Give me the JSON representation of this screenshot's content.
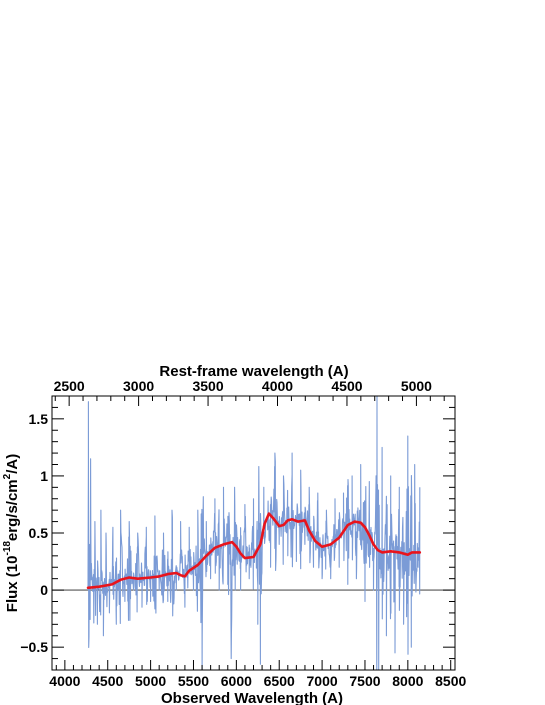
{
  "chart_data": {
    "type": "line",
    "xlabel": "Observed Wavelength (A)",
    "x2label": "Rest-frame wavelength (A)",
    "ylabel_parts": {
      "pre": "Flux (10",
      "sup1": "-18",
      "mid": "erg/s/cm",
      "sup2": "2",
      "post": "/A)"
    },
    "xlim": [
      3850,
      8550
    ],
    "ylim": [
      -0.7,
      1.7
    ],
    "x_ticks": [
      4000,
      4500,
      5000,
      5500,
      6000,
      6500,
      7000,
      7500,
      8000,
      8500
    ],
    "x_tick_labels": [
      "4000",
      "4500",
      "5000",
      "5500",
      "6000",
      "6500",
      "7000",
      "7500",
      "8000",
      "8500"
    ],
    "y_ticks": [
      -0.5,
      0,
      0.5,
      1,
      1.5
    ],
    "y_tick_labels": [
      "−0.5",
      "0",
      "0.5",
      "1",
      "1.5"
    ],
    "rest_ticks": [
      2500,
      3000,
      3500,
      4000,
      4500,
      5000
    ],
    "rest_tick_labels": [
      "2500",
      "3000",
      "3500",
      "4000",
      "4500",
      "5000"
    ],
    "redshift_factor": 1.62,
    "colors": {
      "spectrum": "#7b9bd6",
      "model": "#e8141c",
      "zero_line": "#555555"
    },
    "series": [
      {
        "role": "observed_spectrum",
        "x_range": [
          4270,
          8140
        ],
        "envelope": [
          [
            4270,
            0.0
          ],
          [
            4275,
            1.65
          ],
          [
            4285,
            0.4
          ],
          [
            4300,
            1.15
          ],
          [
            4320,
            0.05
          ],
          [
            4350,
            0.6
          ],
          [
            4380,
            -0.3
          ],
          [
            4420,
            0.7
          ],
          [
            4450,
            -0.4
          ],
          [
            4480,
            0.5
          ],
          [
            4520,
            -0.2
          ],
          [
            4560,
            0.55
          ],
          [
            4600,
            -0.3
          ],
          [
            4650,
            0.7
          ],
          [
            4700,
            -0.1
          ],
          [
            4750,
            0.6
          ],
          [
            4800,
            0.0
          ],
          [
            4850,
            0.5
          ],
          [
            4900,
            -0.15
          ],
          [
            4950,
            0.55
          ],
          [
            5000,
            -0.1
          ],
          [
            5050,
            0.65
          ],
          [
            5100,
            0.0
          ],
          [
            5150,
            0.5
          ],
          [
            5200,
            -0.1
          ],
          [
            5250,
            0.7
          ],
          [
            5300,
            0.0
          ],
          [
            5350,
            0.6
          ],
          [
            5400,
            -0.15
          ],
          [
            5450,
            0.55
          ],
          [
            5500,
            0.0
          ],
          [
            5550,
            0.7
          ],
          [
            5600,
            -0.7
          ],
          [
            5650,
            0.6
          ],
          [
            5700,
            0.1
          ],
          [
            5750,
            0.8
          ],
          [
            5800,
            0.0
          ],
          [
            5850,
            0.9
          ],
          [
            5900,
            0.05
          ],
          [
            5940,
            -0.6
          ],
          [
            5980,
            0.9
          ],
          [
            6050,
            0.0
          ],
          [
            6100,
            0.75
          ],
          [
            6150,
            0.1
          ],
          [
            6200,
            0.8
          ],
          [
            6250,
            -0.3
          ],
          [
            6280,
            -0.65
          ],
          [
            6320,
            0.9
          ],
          [
            6400,
            0.2
          ],
          [
            6450,
            1.2
          ],
          [
            6500,
            0.4
          ],
          [
            6550,
            1.0
          ],
          [
            6600,
            0.3
          ],
          [
            6650,
            1.2
          ],
          [
            6700,
            0.25
          ],
          [
            6750,
            1.05
          ],
          [
            6800,
            0.4
          ],
          [
            6850,
            0.9
          ],
          [
            6900,
            0.2
          ],
          [
            6950,
            0.85
          ],
          [
            7000,
            0.1
          ],
          [
            7050,
            0.7
          ],
          [
            7100,
            0.1
          ],
          [
            7150,
            0.8
          ],
          [
            7200,
            0.2
          ],
          [
            7250,
            0.85
          ],
          [
            7300,
            0.05
          ],
          [
            7350,
            1.0
          ],
          [
            7400,
            0.1
          ],
          [
            7450,
            1.1
          ],
          [
            7500,
            -0.1
          ],
          [
            7550,
            0.95
          ],
          [
            7600,
            0.0
          ],
          [
            7640,
            1.7
          ],
          [
            7660,
            -0.7
          ],
          [
            7700,
            1.25
          ],
          [
            7750,
            -0.4
          ],
          [
            7800,
            1.0
          ],
          [
            7850,
            -0.55
          ],
          [
            7900,
            0.9
          ],
          [
            7950,
            -0.3
          ],
          [
            8000,
            1.35
          ],
          [
            8040,
            -0.5
          ],
          [
            8080,
            1.1
          ],
          [
            8120,
            0.2
          ],
          [
            8140,
            0.9
          ]
        ]
      },
      {
        "role": "smoothed_model",
        "x": [
          4270,
          4400,
          4550,
          4650,
          4750,
          4850,
          5000,
          5100,
          5200,
          5300,
          5350,
          5400,
          5450,
          5550,
          5650,
          5750,
          5850,
          5950,
          6000,
          6050,
          6100,
          6200,
          6280,
          6330,
          6380,
          6430,
          6500,
          6550,
          6600,
          6650,
          6720,
          6800,
          6850,
          6920,
          7000,
          7100,
          7200,
          7300,
          7380,
          7450,
          7500,
          7550,
          7600,
          7650,
          7700,
          7800,
          7900,
          8000,
          8050,
          8140
        ],
        "y": [
          0.02,
          0.03,
          0.05,
          0.09,
          0.11,
          0.1,
          0.11,
          0.12,
          0.14,
          0.15,
          0.13,
          0.12,
          0.17,
          0.22,
          0.3,
          0.37,
          0.4,
          0.42,
          0.38,
          0.32,
          0.28,
          0.29,
          0.4,
          0.58,
          0.67,
          0.63,
          0.56,
          0.57,
          0.61,
          0.62,
          0.6,
          0.61,
          0.52,
          0.43,
          0.38,
          0.4,
          0.46,
          0.57,
          0.6,
          0.59,
          0.55,
          0.48,
          0.4,
          0.35,
          0.33,
          0.34,
          0.33,
          0.31,
          0.33,
          0.33
        ]
      }
    ]
  }
}
